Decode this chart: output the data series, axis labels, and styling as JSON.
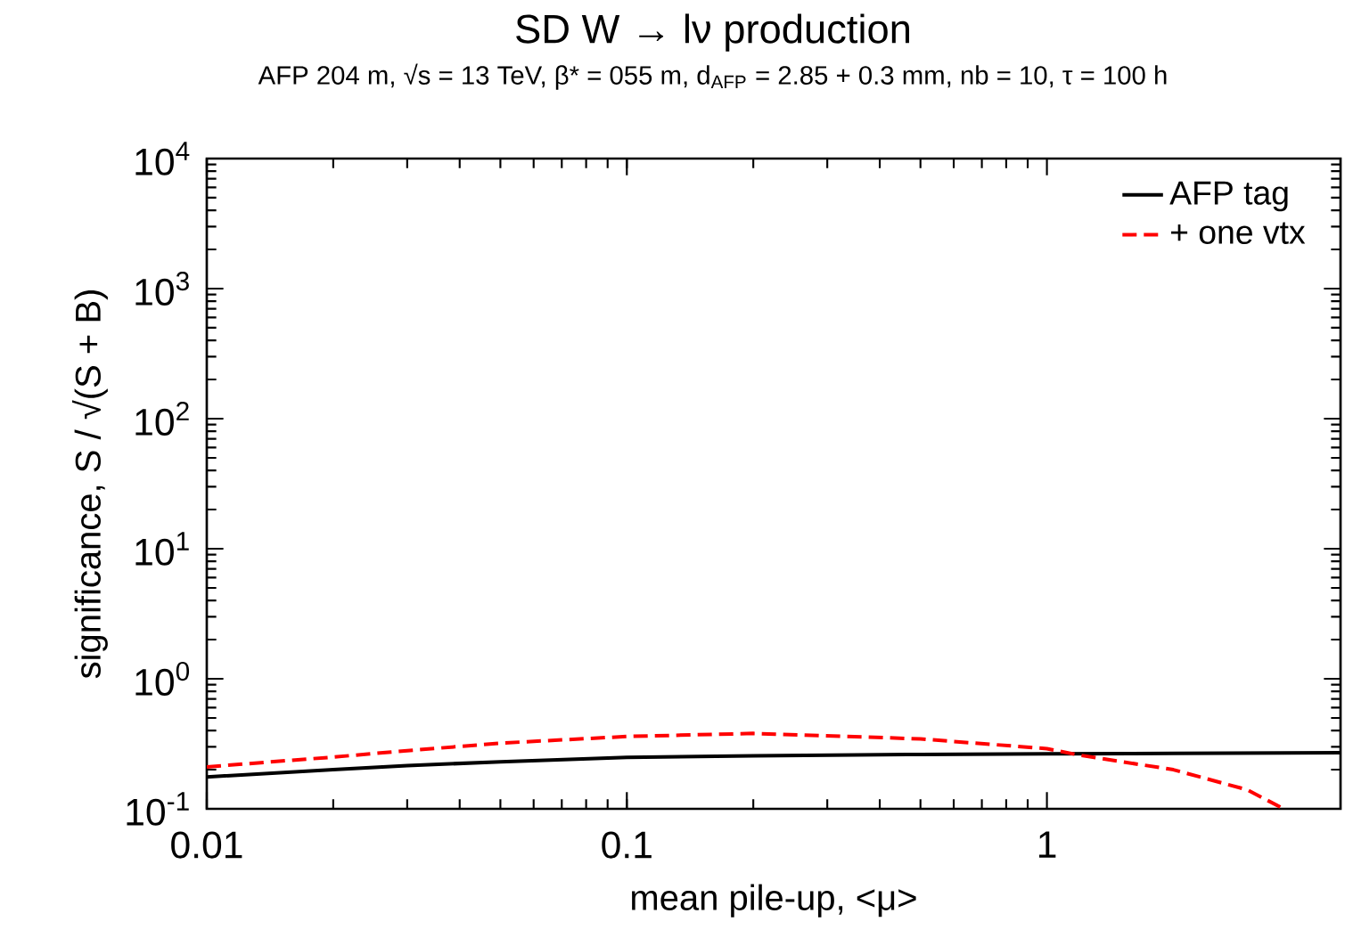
{
  "chart_data": {
    "type": "line",
    "title": "SD W → lν production",
    "subtitle": "AFP 204 m, √s = 13 TeV, β* = 055 m, d$_{AFP}$ = 2.85 + 0.3 mm, nb = 10, τ = 100 h",
    "xlabel": "mean pile-up, <μ>",
    "ylabel": "significance, S / √(S + B)",
    "log": "xy",
    "xlim": [
      0.01,
      5
    ],
    "ylim": [
      0.1,
      10000
    ],
    "xticks": [
      0.01,
      0.1,
      1
    ],
    "yticks": [
      {
        "value": 0.1,
        "label": "10$^{-1}$"
      },
      {
        "value": 1,
        "label": "10$^{0}$"
      },
      {
        "value": 10,
        "label": "10$^{1}$"
      },
      {
        "value": 100,
        "label": "10$^{2}$"
      },
      {
        "value": 1000,
        "label": "10$^{3}$"
      },
      {
        "value": 10000,
        "label": "10$^{4}$"
      }
    ],
    "grid": false,
    "legend": "top right",
    "marker": "none",
    "series": [
      {
        "name": "AFP tag",
        "color": "#000000",
        "line_style": "solid",
        "x": [
          0.01,
          0.02,
          0.03,
          0.05,
          0.1,
          0.2,
          0.5,
          1,
          2,
          5
        ],
        "values": [
          0.176,
          0.2,
          0.215,
          0.23,
          0.249,
          0.256,
          0.262,
          0.265,
          0.267,
          0.27
        ]
      },
      {
        "name": "+ one vtx",
        "color": "#ff0000",
        "line_style": "dashed",
        "x": [
          0.01,
          0.02,
          0.03,
          0.05,
          0.1,
          0.2,
          0.5,
          1,
          1.2,
          2,
          3,
          3.66
        ],
        "values": [
          0.21,
          0.25,
          0.28,
          0.32,
          0.36,
          0.38,
          0.345,
          0.29,
          0.258,
          0.2,
          0.14,
          0.1
        ]
      }
    ]
  }
}
